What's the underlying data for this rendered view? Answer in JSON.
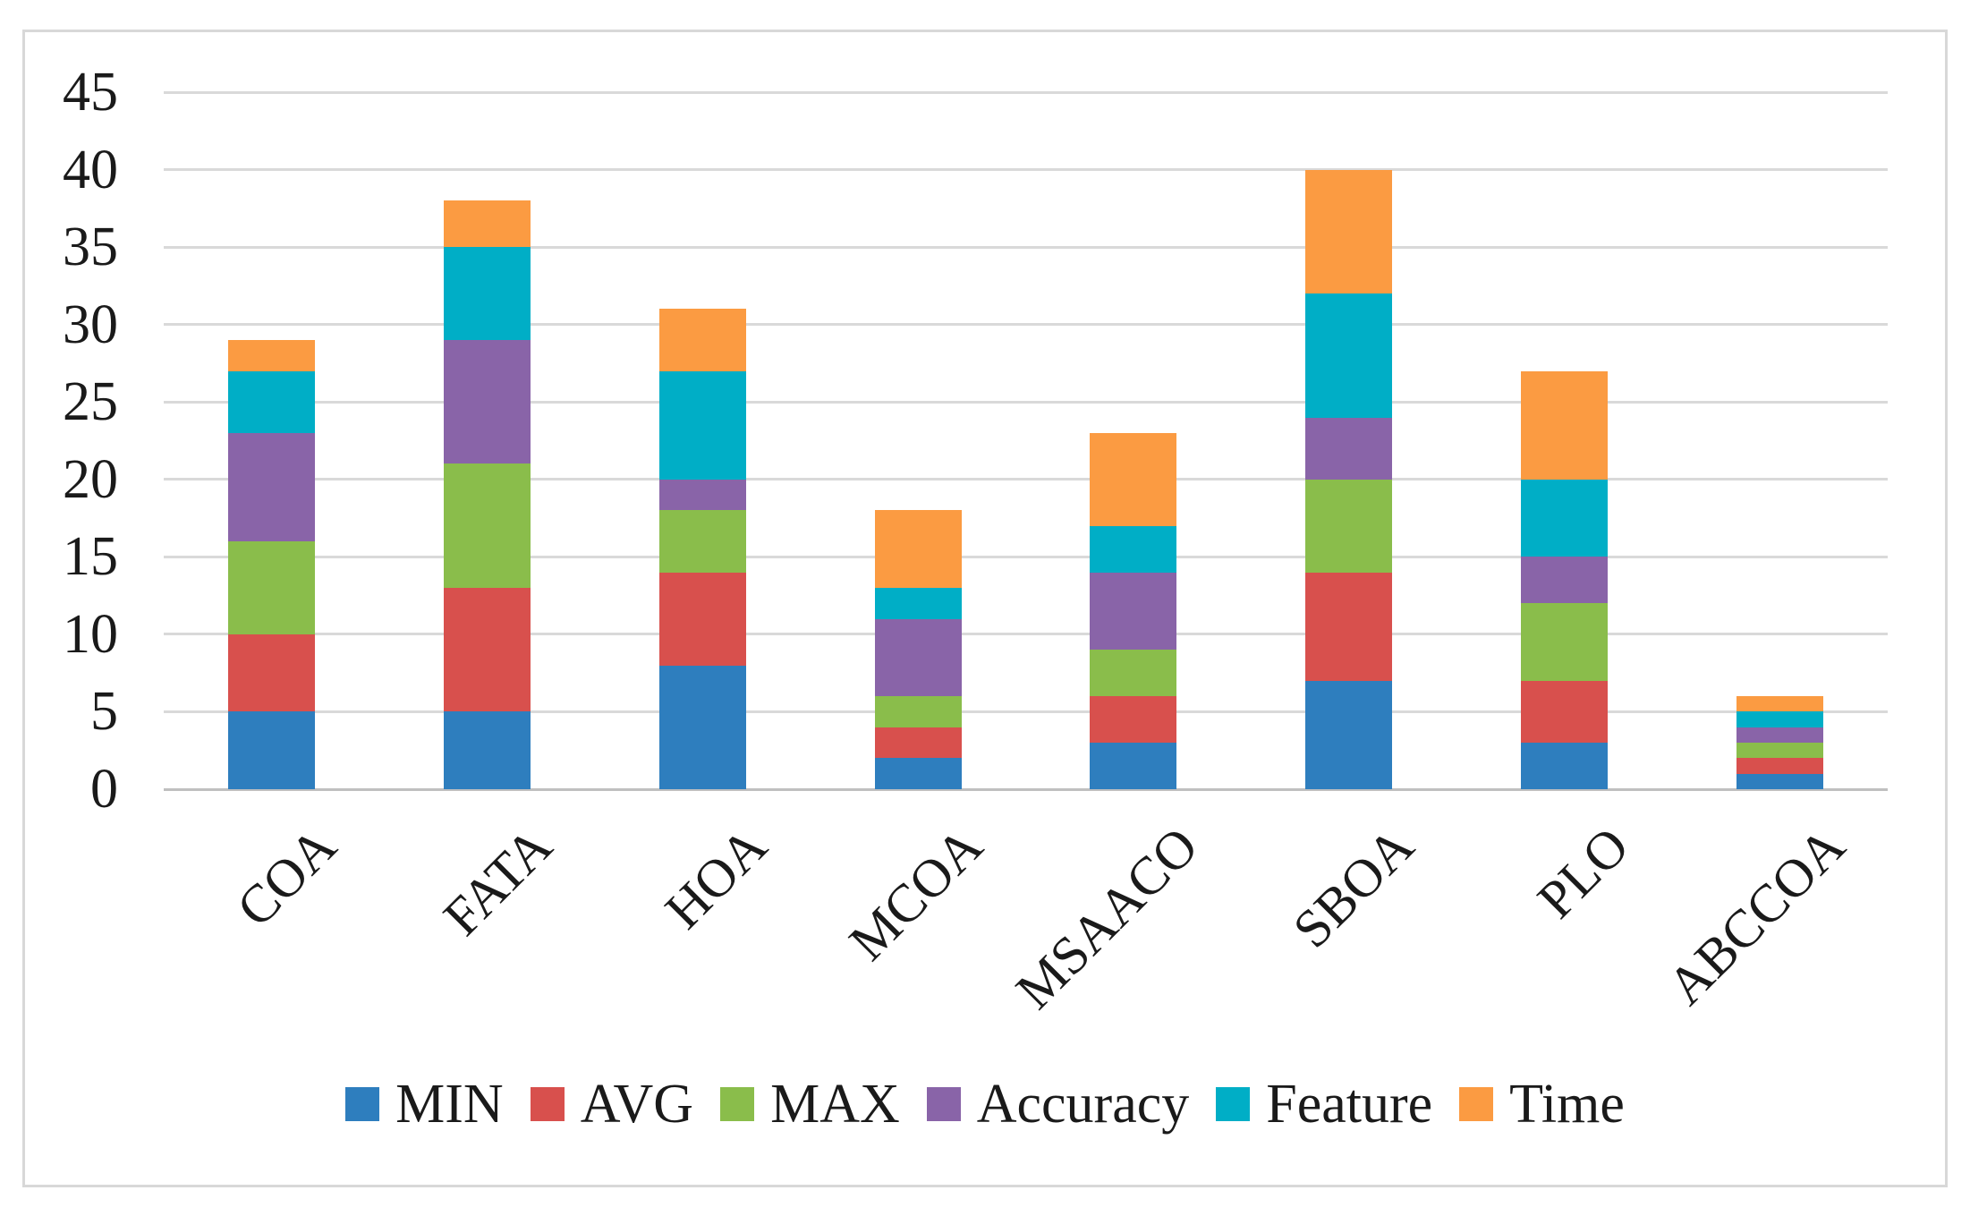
{
  "figure": {
    "background_color": "#ffffff",
    "frame_border_color": "#d8d8d8"
  },
  "chart_data": {
    "type": "bar",
    "stacked": true,
    "title": "",
    "xlabel": "",
    "ylabel": "",
    "categories": [
      "COA",
      "FATA",
      "HOA",
      "MCOA",
      "MSAACO",
      "SBOA",
      "PLO",
      "ABCCOA"
    ],
    "series": [
      {
        "name": "MIN",
        "color": "#2e7ebe",
        "values": [
          5,
          5,
          8,
          2,
          3,
          7,
          3,
          1
        ]
      },
      {
        "name": "AVG",
        "color": "#d8504d",
        "values": [
          5,
          8,
          6,
          2,
          3,
          7,
          4,
          1
        ]
      },
      {
        "name": "MAX",
        "color": "#8abd4b",
        "values": [
          6,
          8,
          4,
          2,
          3,
          6,
          5,
          1
        ]
      },
      {
        "name": "Accuracy",
        "color": "#8964a8",
        "values": [
          7,
          8,
          2,
          5,
          5,
          4,
          3,
          1
        ]
      },
      {
        "name": "Feature",
        "color": "#00aec6",
        "values": [
          4,
          6,
          7,
          2,
          3,
          8,
          5,
          1
        ]
      },
      {
        "name": "Time",
        "color": "#fb9b42",
        "values": [
          2,
          3,
          4,
          5,
          6,
          8,
          7,
          1
        ]
      }
    ],
    "stack_totals": [
      29,
      38,
      31,
      18,
      23,
      40,
      27,
      6
    ],
    "y_axis": {
      "min": 0,
      "max": 45,
      "step": 5,
      "tick_labels": [
        "0",
        "5",
        "10",
        "15",
        "20",
        "25",
        "30",
        "35",
        "40",
        "45"
      ]
    },
    "grid": "horizontal",
    "gridline_color": "#d9d9d9",
    "axis_line_color": "#bfbfbf",
    "text_color": "#1a1a1a",
    "legend_position": "bottom",
    "legend_labels": [
      "MIN",
      "AVG",
      "MAX",
      "Accuracy",
      "Feature",
      "Time"
    ]
  }
}
